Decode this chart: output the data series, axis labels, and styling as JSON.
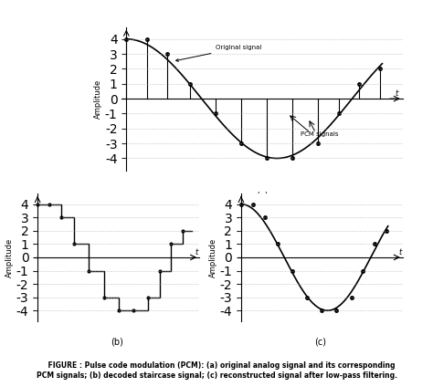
{
  "bg_color": "#ffffff",
  "fig_caption": "    FIGURE : Pulse code modulation (PCM): (a) original analog signal and its corresponding\nPCM signals; (b) decoded staircase signal; (c) reconstructed signal after low-pass filtering.",
  "amplitude_label": "Amplitude",
  "t_label": "t",
  "yticks": [
    -4,
    -3,
    -2,
    -1,
    0,
    1,
    2,
    3,
    4
  ],
  "sine_amplitude": 4,
  "signal_color": "black",
  "grid_color": "#aaaaaa",
  "dot_color": "black",
  "sample_x": [
    0.0,
    0.08,
    0.16,
    0.25,
    0.35,
    0.45,
    0.55,
    0.65,
    0.75,
    0.83,
    0.91,
    0.99
  ]
}
